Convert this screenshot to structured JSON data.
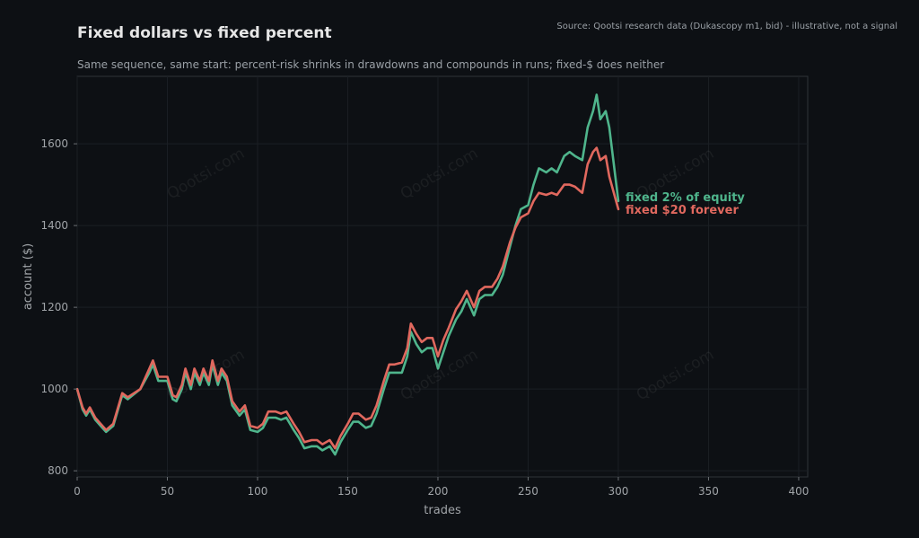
{
  "chart_data": {
    "type": "line",
    "title": "Fixed dollars vs fixed percent",
    "subtitle": "Same sequence, same start: percent-risk shrinks in drawdowns and compounds in runs; fixed-$ does neither",
    "source": "Source: Qootsi research data (Dukascopy m1, bid) - illustrative, not a signal",
    "watermark": "Qootsi.com",
    "xlabel": "trades",
    "ylabel": "account ($)",
    "xlim": [
      0,
      405
    ],
    "ylim": [
      785,
      1765
    ],
    "xticks": [
      0,
      50,
      100,
      150,
      200,
      250,
      300,
      350,
      400
    ],
    "yticks": [
      800,
      1000,
      1200,
      1400,
      1600
    ],
    "grid": true,
    "series": [
      {
        "name": "fixed 2% of equity",
        "color": "#4fb58c",
        "x": [
          0,
          3,
          5,
          7,
          10,
          13,
          16,
          20,
          25,
          28,
          35,
          40,
          42,
          45,
          50,
          53,
          55,
          58,
          60,
          63,
          65,
          68,
          70,
          73,
          75,
          78,
          80,
          83,
          86,
          90,
          93,
          96,
          100,
          103,
          106,
          110,
          113,
          116,
          120,
          123,
          126,
          130,
          133,
          136,
          140,
          143,
          146,
          150,
          153,
          156,
          160,
          163,
          166,
          170,
          173,
          176,
          180,
          183,
          185,
          188,
          191,
          194,
          197,
          200,
          203,
          206,
          210,
          213,
          216,
          220,
          223,
          226,
          230,
          233,
          236,
          240,
          243,
          246,
          250,
          253,
          256,
          260,
          263,
          266,
          270,
          273,
          276,
          280,
          283,
          286,
          288,
          290,
          293,
          295,
          300
        ],
        "values": [
          1000,
          950,
          935,
          950,
          925,
          910,
          895,
          910,
          985,
          975,
          1000,
          1040,
          1060,
          1020,
          1020,
          975,
          970,
          1000,
          1040,
          1000,
          1040,
          1010,
          1040,
          1010,
          1060,
          1010,
          1040,
          1020,
          960,
          935,
          950,
          900,
          895,
          905,
          930,
          930,
          925,
          930,
          900,
          880,
          855,
          860,
          860,
          850,
          860,
          840,
          870,
          900,
          920,
          920,
          905,
          910,
          940,
          1000,
          1040,
          1040,
          1040,
          1080,
          1140,
          1110,
          1090,
          1100,
          1100,
          1050,
          1090,
          1130,
          1170,
          1190,
          1220,
          1180,
          1220,
          1230,
          1230,
          1250,
          1280,
          1350,
          1400,
          1440,
          1450,
          1500,
          1540,
          1530,
          1540,
          1530,
          1570,
          1580,
          1570,
          1560,
          1640,
          1680,
          1720,
          1660,
          1680,
          1640,
          1460
        ]
      },
      {
        "name": "fixed $20 forever",
        "color": "#e0685e",
        "x": [
          0,
          3,
          5,
          7,
          10,
          13,
          16,
          20,
          25,
          28,
          35,
          40,
          42,
          45,
          50,
          53,
          55,
          58,
          60,
          63,
          65,
          68,
          70,
          73,
          75,
          78,
          80,
          83,
          86,
          90,
          93,
          96,
          100,
          103,
          106,
          110,
          113,
          116,
          120,
          123,
          126,
          130,
          133,
          136,
          140,
          143,
          146,
          150,
          153,
          156,
          160,
          163,
          166,
          170,
          173,
          176,
          180,
          183,
          185,
          188,
          191,
          194,
          197,
          200,
          203,
          206,
          210,
          213,
          216,
          220,
          223,
          226,
          230,
          233,
          236,
          240,
          243,
          246,
          250,
          253,
          256,
          260,
          263,
          266,
          270,
          273,
          276,
          280,
          283,
          286,
          288,
          290,
          293,
          295,
          300
        ],
        "values": [
          1000,
          955,
          940,
          955,
          930,
          915,
          900,
          915,
          990,
          980,
          1000,
          1050,
          1070,
          1030,
          1030,
          985,
          980,
          1010,
          1050,
          1010,
          1050,
          1020,
          1050,
          1020,
          1070,
          1020,
          1050,
          1030,
          970,
          945,
          960,
          910,
          905,
          915,
          945,
          945,
          940,
          945,
          915,
          895,
          870,
          875,
          875,
          865,
          875,
          855,
          885,
          915,
          940,
          940,
          925,
          930,
          960,
          1020,
          1060,
          1060,
          1065,
          1100,
          1160,
          1135,
          1115,
          1125,
          1125,
          1080,
          1120,
          1150,
          1195,
          1215,
          1240,
          1200,
          1240,
          1250,
          1250,
          1270,
          1300,
          1360,
          1395,
          1420,
          1430,
          1460,
          1480,
          1475,
          1480,
          1475,
          1500,
          1500,
          1495,
          1480,
          1550,
          1580,
          1590,
          1560,
          1570,
          1520,
          1440
        ]
      }
    ]
  }
}
